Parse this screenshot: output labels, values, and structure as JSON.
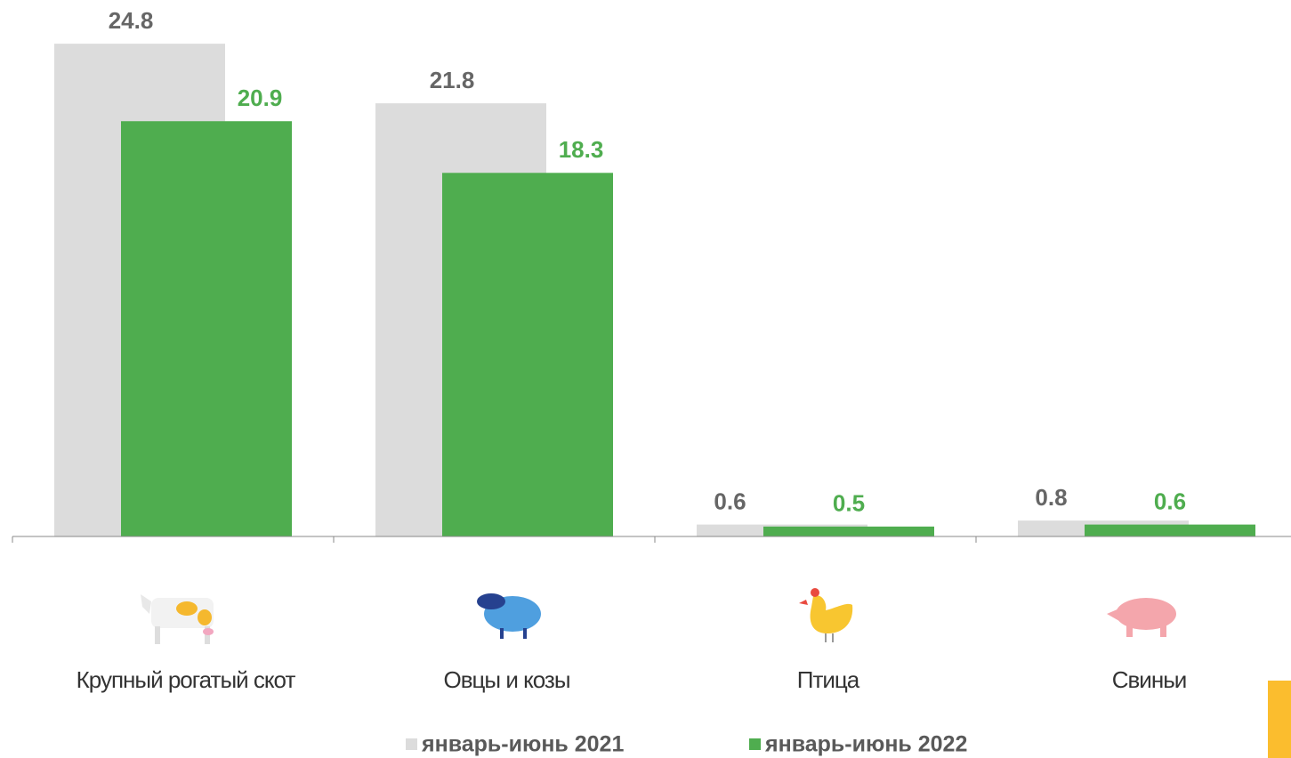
{
  "chart_data": {
    "type": "bar",
    "categories": [
      "Крупный рогатый скот",
      "Овцы и козы",
      "Птица",
      "Свиньи"
    ],
    "series": [
      {
        "name": "январь-июнь 2021",
        "color": "#dcdcdc",
        "label_color": "#666666",
        "values": [
          24.8,
          21.8,
          0.6,
          0.8
        ]
      },
      {
        "name": "январь-июнь 2022",
        "color": "#4fad4f",
        "label_color": "#4fad4f",
        "values": [
          20.9,
          18.3,
          0.5,
          0.6
        ]
      }
    ],
    "ylim": [
      0,
      27
    ]
  }
}
